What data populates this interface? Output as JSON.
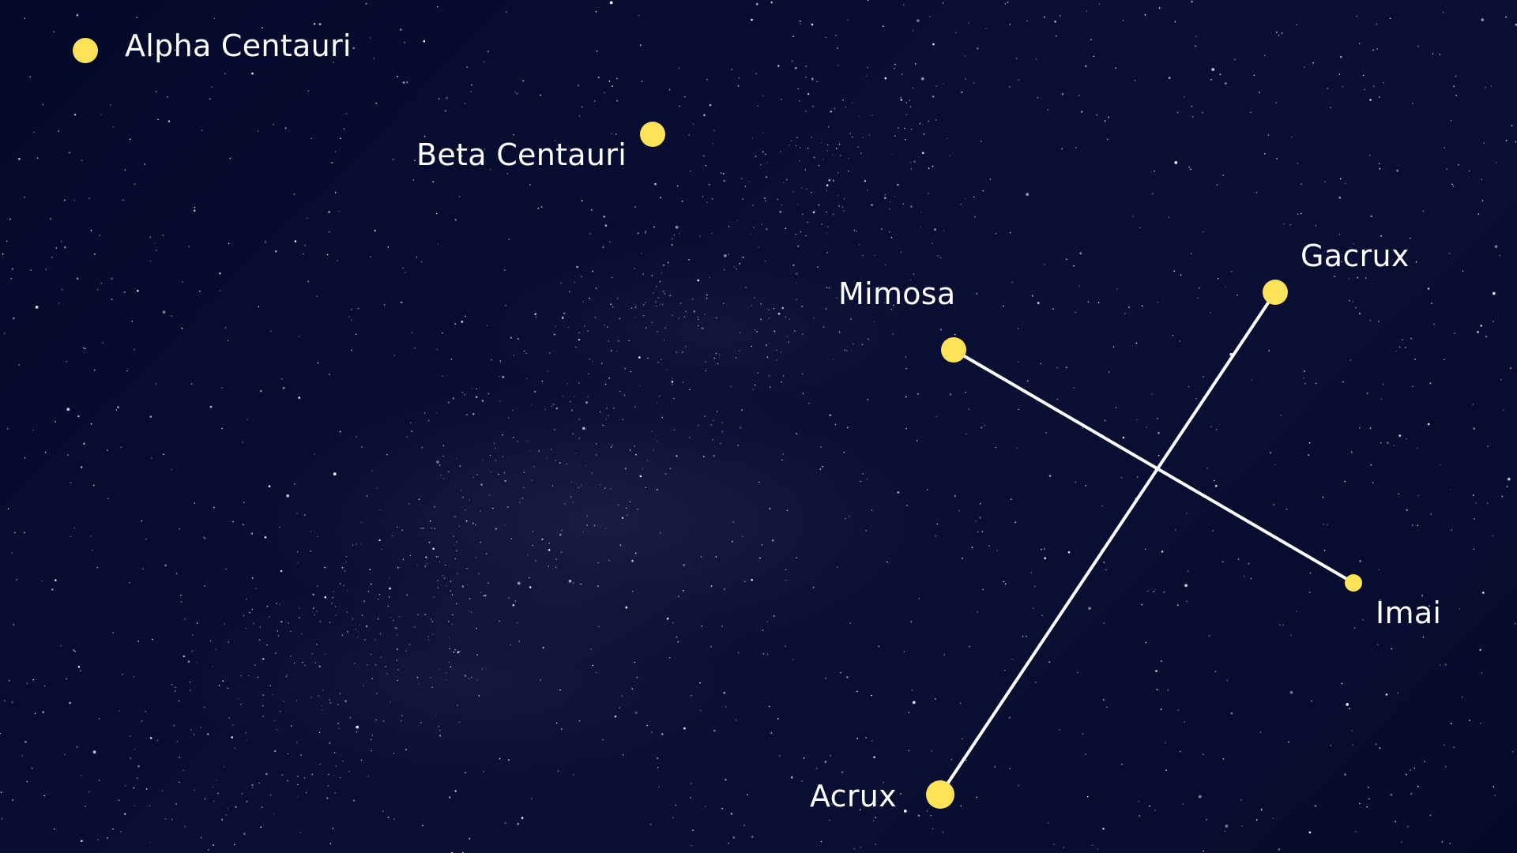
{
  "colors": {
    "background": "#070b2b",
    "star_marker": "#fde25a",
    "line": "#ffffff",
    "label": "#ffffff"
  },
  "stars": {
    "alpha_centauri": "Alpha Centauri",
    "beta_centauri": "Beta Centauri",
    "mimosa": "Mimosa",
    "gacrux": "Gacrux",
    "imai": "Imai",
    "acrux": "Acrux"
  },
  "connections": [
    [
      "Mimosa",
      "Imai"
    ],
    [
      "Gacrux",
      "Acrux"
    ]
  ]
}
